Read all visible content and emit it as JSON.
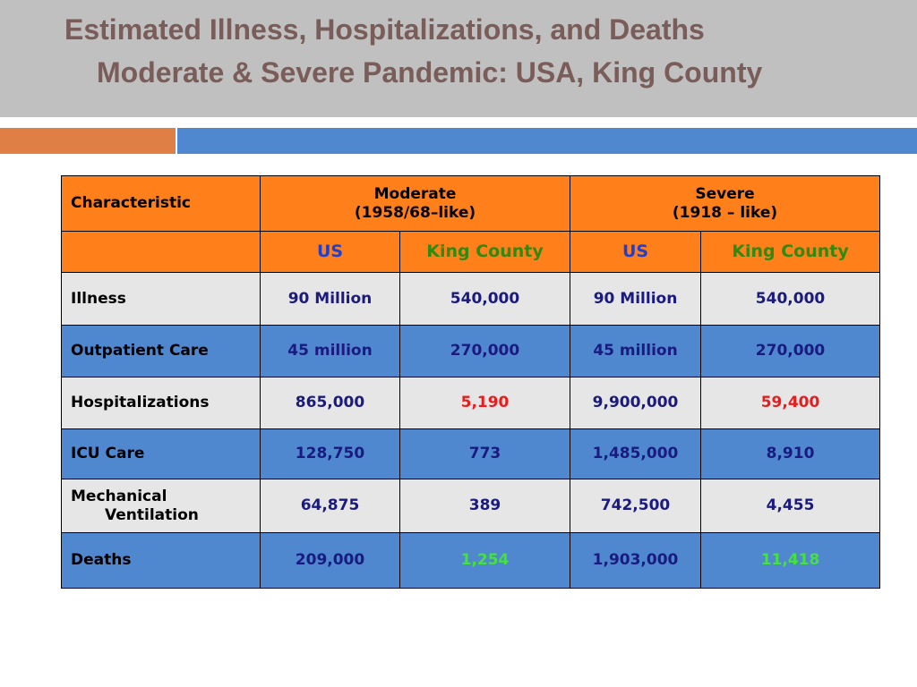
{
  "slide": {
    "title_line1": "Estimated Illness, Hospitalizations, and Deaths",
    "title_line2": "Moderate & Severe Pandemic: USA, King County"
  },
  "table": {
    "header": {
      "characteristic": "Characteristic",
      "moderate": "Moderate",
      "moderate_note": "(1958/68–like)",
      "severe": "Severe",
      "severe_note": "(1918 – like)"
    },
    "subheader": [
      "US",
      "King County",
      "US",
      "King County"
    ],
    "rows": [
      {
        "label": "Illness",
        "values": [
          "90 Million",
          "540,000",
          "90 Million",
          "540,000"
        ]
      },
      {
        "label": "Outpatient Care",
        "values": [
          "45 million",
          "270,000",
          "45 million",
          "270,000"
        ]
      },
      {
        "label": "Hospitalizations",
        "values": [
          "865,000",
          "5,190",
          "9,900,000",
          "59,400"
        ]
      },
      {
        "label": "ICU Care",
        "values": [
          "128,750",
          "773",
          "1,485,000",
          "8,910"
        ]
      },
      {
        "label_line1": "Mechanical",
        "label_line2": "Ventilation",
        "values": [
          "64,875",
          "389",
          "742,500",
          "4,455"
        ]
      },
      {
        "label": "Deaths",
        "values": [
          "209,000",
          "1,254",
          "1,903,000",
          "11,418"
        ]
      }
    ]
  },
  "colors": {
    "title_text": "#7a5c58",
    "title_band": "#c0c0c0",
    "accent_orange": "#e07f45",
    "accent_blue": "#5088d0",
    "header_orange": "#ff7f1a",
    "row_grey": "#e6e6e6",
    "row_blue": "#5088d0",
    "highlight_red": "#e81c1c",
    "highlight_green": "#44e23a"
  }
}
